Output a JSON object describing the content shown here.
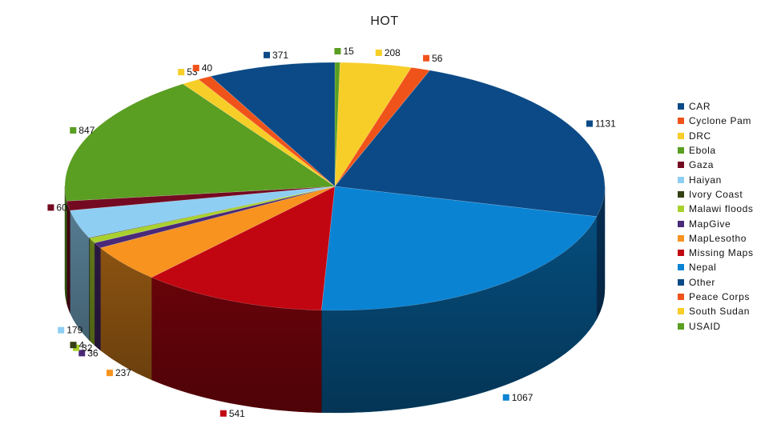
{
  "chart_data": {
    "type": "pie",
    "title": "HOT",
    "legend_position": "right",
    "three_d": true,
    "categories": [
      "CAR",
      "Cyclone Pam",
      "DRC",
      "Ebola",
      "Gaza",
      "Haiyan",
      "Ivory Coast",
      "Malawi floods",
      "MapGive",
      "MapLesotho",
      "Missing Maps",
      "Nepal",
      "Other",
      "Peace Corps",
      "South Sudan",
      "USAID"
    ],
    "colors": [
      "#0b4a86",
      "#f0531a",
      "#f7ce27",
      "#5a9e22",
      "#740a21",
      "#8ecef2",
      "#334011",
      "#a9d12c",
      "#4a2a78",
      "#f7931e",
      "#c10611",
      "#0a83d3",
      "#0b4a86",
      "#f0531a",
      "#f7ce27",
      "#5a9e22"
    ],
    "slices": [
      {
        "label": "USAID",
        "value": 15,
        "color": "#5a9e22"
      },
      {
        "label": "South Sudan",
        "value": 208,
        "color": "#f7ce27"
      },
      {
        "label": "Peace Corps",
        "value": 56,
        "color": "#f0531a"
      },
      {
        "label": "CAR",
        "value": 1131,
        "color": "#0b4a86"
      },
      {
        "label": "Nepal",
        "value": 1067,
        "color": "#0a83d3"
      },
      {
        "label": "Missing Maps",
        "value": 541,
        "color": "#c10611"
      },
      {
        "label": "MapLesotho",
        "value": 237,
        "color": "#f7931e"
      },
      {
        "label": "MapGive",
        "value": 36,
        "color": "#4a2a78"
      },
      {
        "label": "Malawi floods",
        "value": 32,
        "color": "#a9d12c"
      },
      {
        "label": "Ivory Coast",
        "value": 4,
        "color": "#334011"
      },
      {
        "label": "Haiyan",
        "value": 179,
        "color": "#8ecef2"
      },
      {
        "label": "Gaza",
        "value": 60,
        "color": "#740a21"
      },
      {
        "label": "Ebola",
        "value": 847,
        "color": "#5a9e22"
      },
      {
        "label": "DRC",
        "value": 53,
        "color": "#f7ce27"
      },
      {
        "label": "Cyclone Pam",
        "value": 40,
        "color": "#f0531a"
      },
      {
        "label": "Other",
        "value": 371,
        "color": "#0b4a86"
      }
    ],
    "data_labels": [
      "15",
      "208",
      "56",
      "1131",
      "1067",
      "541",
      "237",
      "36",
      "32",
      "4",
      "179",
      "60",
      "847",
      "53",
      "40",
      "371"
    ]
  }
}
